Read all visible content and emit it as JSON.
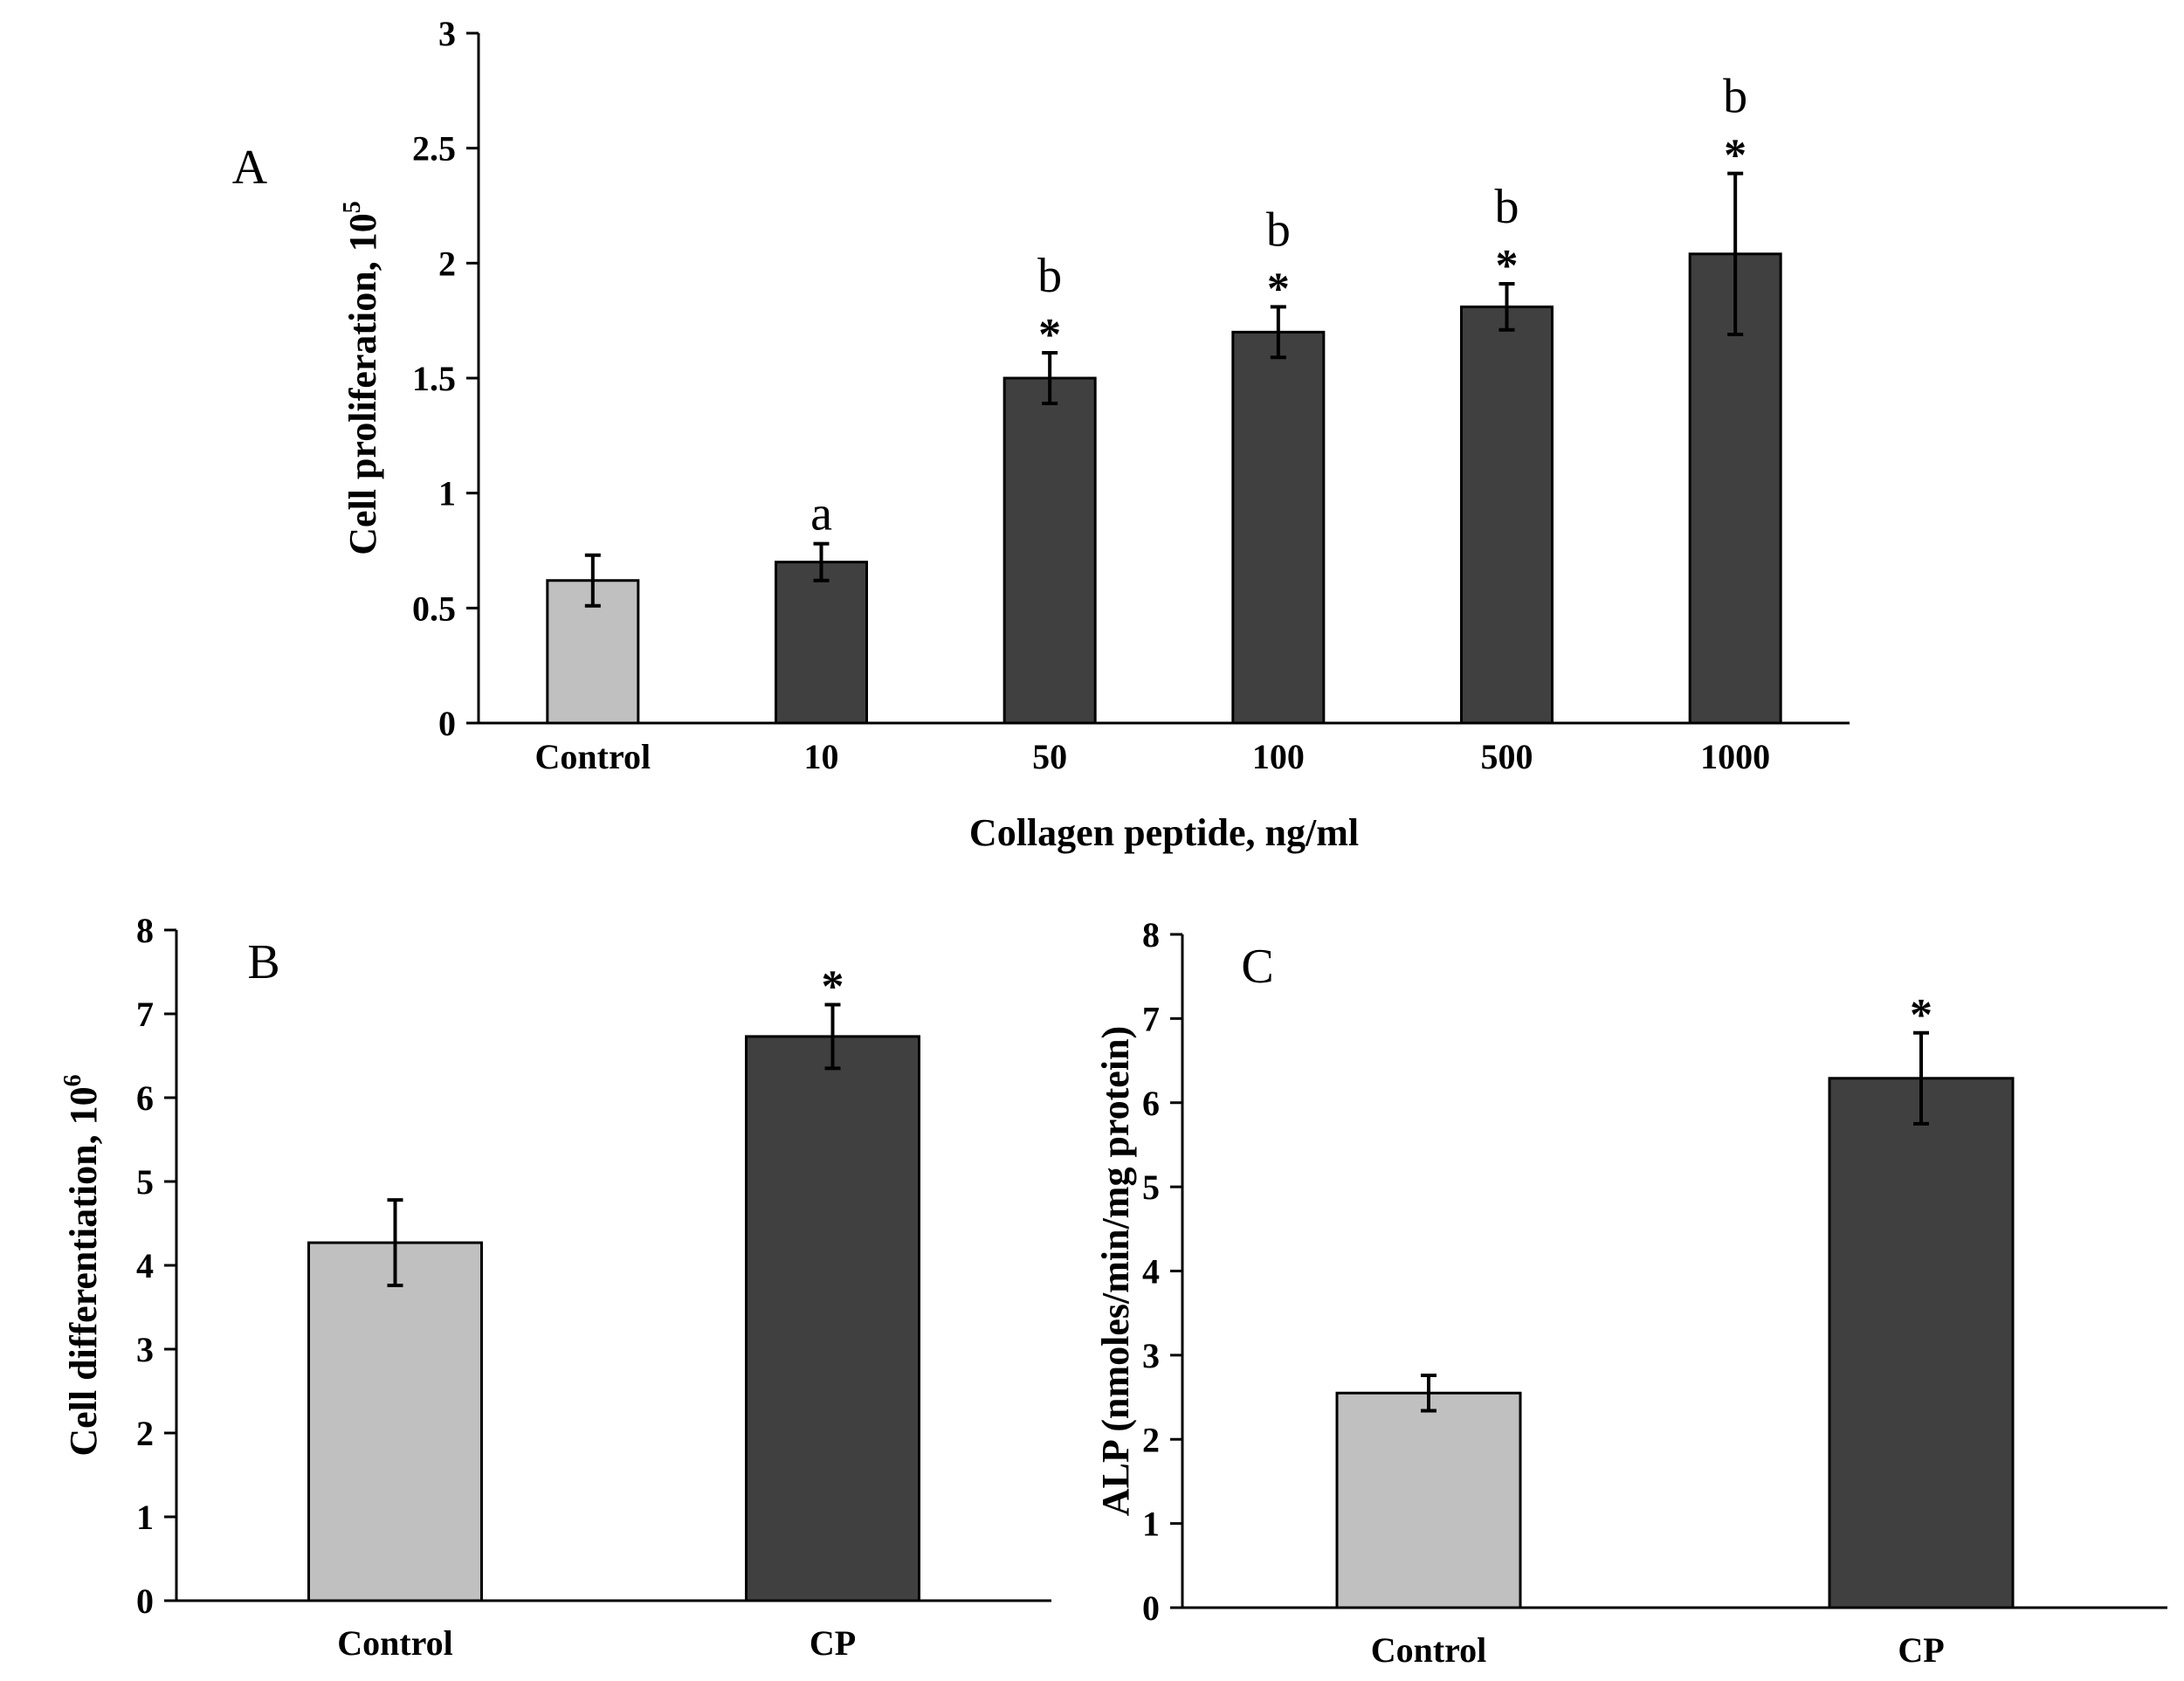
{
  "chart_data": [
    {
      "type": "bar",
      "panel": "A",
      "ylabel_main": "Cell proliferation, 10",
      "ylabel_sup": "5",
      "xlabel": "Collagen peptide, ng/ml",
      "ylim": [
        0,
        3
      ],
      "yticks": [
        "0",
        "0.5",
        "1",
        "1.5",
        "2",
        "2.5",
        "3"
      ],
      "categories": [
        "Control",
        "10",
        "50",
        "100",
        "500",
        "1000"
      ],
      "values": [
        0.62,
        0.7,
        1.5,
        1.7,
        1.81,
        2.04
      ],
      "errors": [
        0.11,
        0.08,
        0.11,
        0.11,
        0.1,
        0.35
      ],
      "bar_colors": [
        "#c0c0c0",
        "#404040",
        "#404040",
        "#404040",
        "#404040",
        "#404040"
      ],
      "stars": [
        "",
        "",
        "*",
        "*",
        "*",
        "*"
      ],
      "letters": [
        "",
        "a",
        "b",
        "b",
        "b",
        "b"
      ],
      "grid": false
    },
    {
      "type": "bar",
      "panel": "B",
      "ylabel_main": "Cell differentiation, 10",
      "ylabel_sup": "6",
      "xlabel": "",
      "ylim": [
        0,
        8
      ],
      "yticks": [
        "0",
        "1",
        "2",
        "3",
        "4",
        "5",
        "6",
        "7",
        "8"
      ],
      "categories": [
        "Control",
        "CP"
      ],
      "values": [
        4.27,
        6.73
      ],
      "errors": [
        0.51,
        0.38
      ],
      "bar_colors": [
        "#c0c0c0",
        "#404040"
      ],
      "stars": [
        "",
        "*"
      ],
      "letters": [
        "",
        ""
      ],
      "grid": false
    },
    {
      "type": "bar",
      "panel": "C",
      "ylabel_main": "ALP (nmoles/min/mg  protein)",
      "ylabel_sup": "",
      "xlabel": "",
      "ylim": [
        0,
        8
      ],
      "yticks": [
        "0",
        "1",
        "2",
        "3",
        "4",
        "5",
        "6",
        "7",
        "8"
      ],
      "categories": [
        "Control",
        "CP"
      ],
      "values": [
        2.55,
        6.29
      ],
      "errors": [
        0.21,
        0.54
      ],
      "bar_colors": [
        "#c0c0c0",
        "#404040"
      ],
      "stars": [
        "",
        "*"
      ],
      "letters": [
        "",
        ""
      ],
      "grid": false
    }
  ]
}
